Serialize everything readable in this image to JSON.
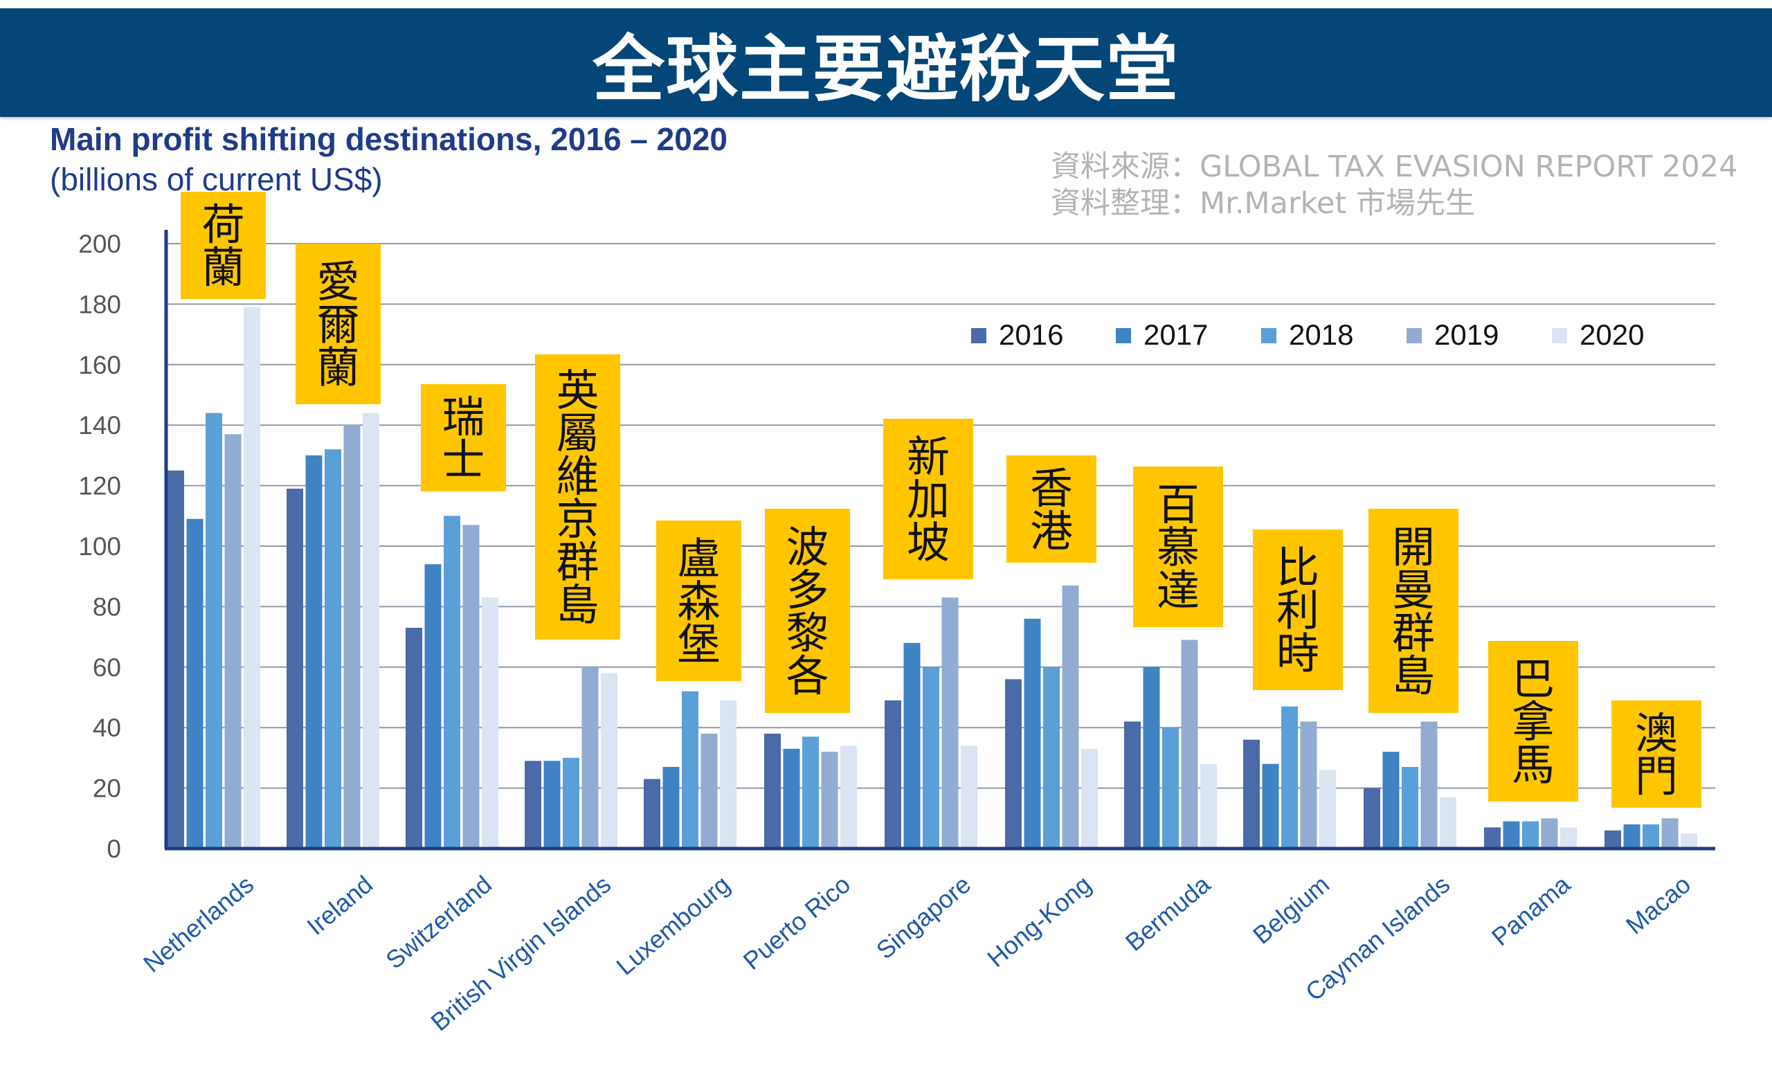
{
  "banner": {
    "title": "全球主要避稅天堂"
  },
  "header": {
    "chart_title": "Main profit shifting destinations, 2016 – 2020",
    "chart_subtitle": "(billions of current US$)"
  },
  "source": {
    "line1": "資料來源：GLOBAL  TAX EVASION  REPORT 2024",
    "line2": "資料整理：Mr.Market 市場先生"
  },
  "colors": {
    "banner_bg": "#034677",
    "label_box": "#FFC600",
    "series": [
      "#4a6aa8",
      "#3f83c5",
      "#5b9fd9",
      "#92abd3",
      "#dae4f2"
    ]
  },
  "chart_data": {
    "type": "bar",
    "title": "Main profit shifting destinations, 2016 – 2020",
    "subtitle": "(billions of current US$)",
    "xlabel": "",
    "ylabel": "",
    "ylim": [
      0,
      200
    ],
    "yticks": [
      0,
      20,
      40,
      60,
      80,
      100,
      120,
      140,
      160,
      180,
      200
    ],
    "grid": true,
    "legend_position": "top-right",
    "categories": [
      "Netherlands",
      "Ireland",
      "Switzerland",
      "British Virgin Islands",
      "Luxembourg",
      "Puerto Rico",
      "Singapore",
      "Hong-Kong",
      "Bermuda",
      "Belgium",
      "Cayman Islands",
      "Panama",
      "Macao"
    ],
    "category_labels_zh": [
      "荷蘭",
      "愛爾蘭",
      "瑞士",
      "英屬維京群島",
      "盧森堡",
      "波多黎各",
      "新加坡",
      "香港",
      "百慕達",
      "比利時",
      "開曼群島",
      "巴拿馬",
      "澳門"
    ],
    "series": [
      {
        "name": "2016",
        "values": [
          125,
          119,
          73,
          29,
          23,
          38,
          49,
          56,
          42,
          36,
          20,
          7,
          6
        ]
      },
      {
        "name": "2017",
        "values": [
          109,
          130,
          94,
          29,
          27,
          33,
          68,
          76,
          60,
          28,
          32,
          9,
          8
        ]
      },
      {
        "name": "2018",
        "values": [
          144,
          132,
          110,
          30,
          52,
          37,
          60,
          60,
          40,
          47,
          27,
          9,
          8
        ]
      },
      {
        "name": "2019",
        "values": [
          137,
          140,
          107,
          60,
          38,
          32,
          83,
          87,
          69,
          42,
          42,
          10,
          10
        ]
      },
      {
        "name": "2020",
        "values": [
          179,
          144,
          83,
          58,
          49,
          34,
          34,
          33,
          28,
          26,
          17,
          7,
          5
        ]
      }
    ]
  }
}
